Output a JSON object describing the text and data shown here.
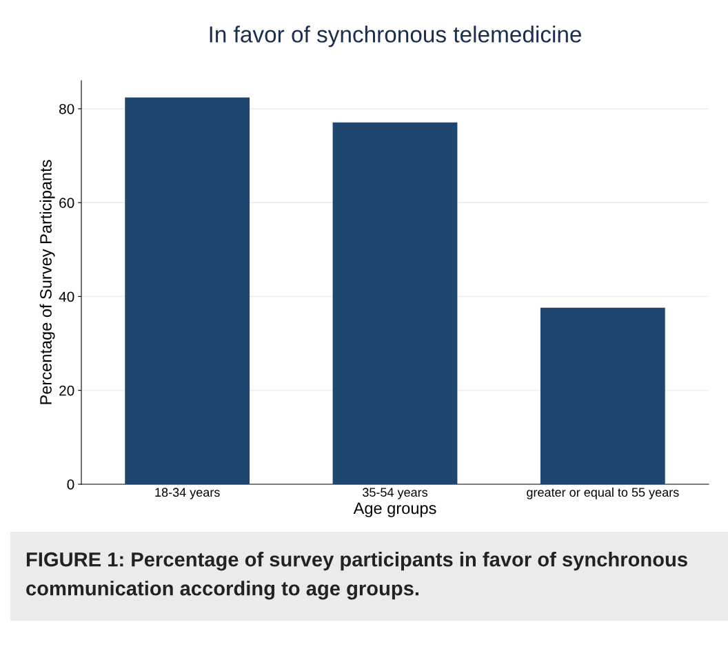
{
  "chart_data": {
    "type": "bar",
    "title": "In favor of synchronous telemedicine",
    "xlabel": "Age groups",
    "ylabel": "Percentage of Survey Participants",
    "categories": [
      "18-34 years",
      "35-54 years",
      "greater or equal to 55 years"
    ],
    "values": [
      82.4,
      77.1,
      37.6
    ],
    "color": "#1e466f",
    "ylim": [
      0,
      86
    ],
    "yticks": [
      0,
      20,
      40,
      60,
      80
    ],
    "grid": "y",
    "annotations": [
      "FIGURE 1: Percentage of survey participants in favor of synchronous communication according to age groups."
    ]
  }
}
